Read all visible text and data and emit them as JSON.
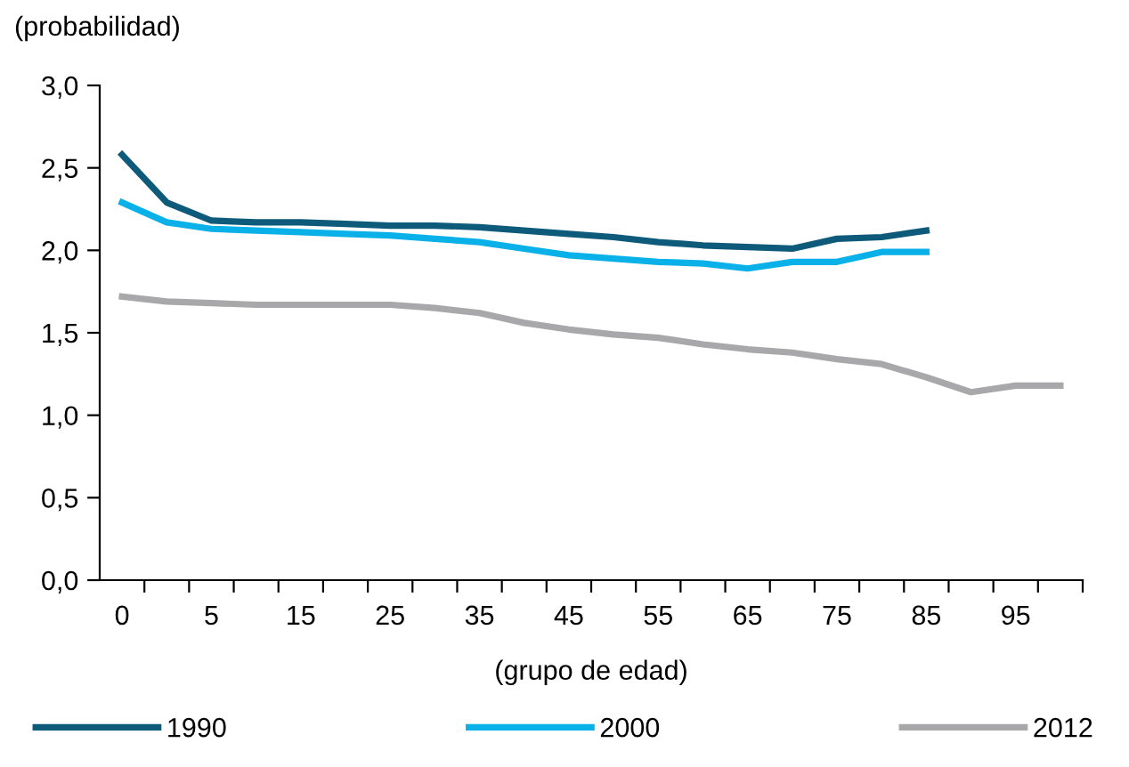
{
  "chart_data": {
    "type": "line",
    "ylabel": "(probabilidad)",
    "xlabel": "(grupo de edad)",
    "categories": [
      "0",
      null,
      "5",
      null,
      "15",
      null,
      "25",
      null,
      "35",
      null,
      "45",
      null,
      "55",
      null,
      "65",
      null,
      "75",
      null,
      "85",
      null,
      "95",
      null
    ],
    "series": [
      {
        "name": "1990",
        "color": "#0d5a7a",
        "values": [
          2.58,
          2.29,
          2.18,
          2.17,
          2.17,
          2.16,
          2.15,
          2.15,
          2.14,
          2.12,
          2.1,
          2.08,
          2.05,
          2.03,
          2.02,
          2.01,
          2.07,
          2.08,
          2.12,
          null,
          null,
          null
        ]
      },
      {
        "name": "2000",
        "color": "#0ab0e8",
        "values": [
          2.29,
          2.17,
          2.13,
          2.12,
          2.11,
          2.1,
          2.09,
          2.07,
          2.05,
          2.01,
          1.97,
          1.95,
          1.93,
          1.92,
          1.89,
          1.93,
          1.93,
          1.99,
          1.99,
          null,
          null,
          null
        ]
      },
      {
        "name": "2012",
        "color": "#a8a8ab",
        "values": [
          1.72,
          1.69,
          1.68,
          1.67,
          1.67,
          1.67,
          1.67,
          1.65,
          1.62,
          1.56,
          1.52,
          1.49,
          1.47,
          1.43,
          1.4,
          1.38,
          1.34,
          1.31,
          1.23,
          1.14,
          1.18,
          1.18
        ]
      }
    ],
    "ylim": [
      0,
      3
    ],
    "yticks": [
      {
        "value": 0,
        "label": "0,0"
      },
      {
        "value": 0.5,
        "label": "0,5"
      },
      {
        "value": 1,
        "label": "1,0"
      },
      {
        "value": 1.5,
        "label": "1,5"
      },
      {
        "value": 2,
        "label": "2,0"
      },
      {
        "value": 2.5,
        "label": "2,5"
      },
      {
        "value": 3,
        "label": "3,0"
      }
    ],
    "grid": false,
    "legend": "bottom",
    "marker": "none",
    "line_style": "solid"
  }
}
